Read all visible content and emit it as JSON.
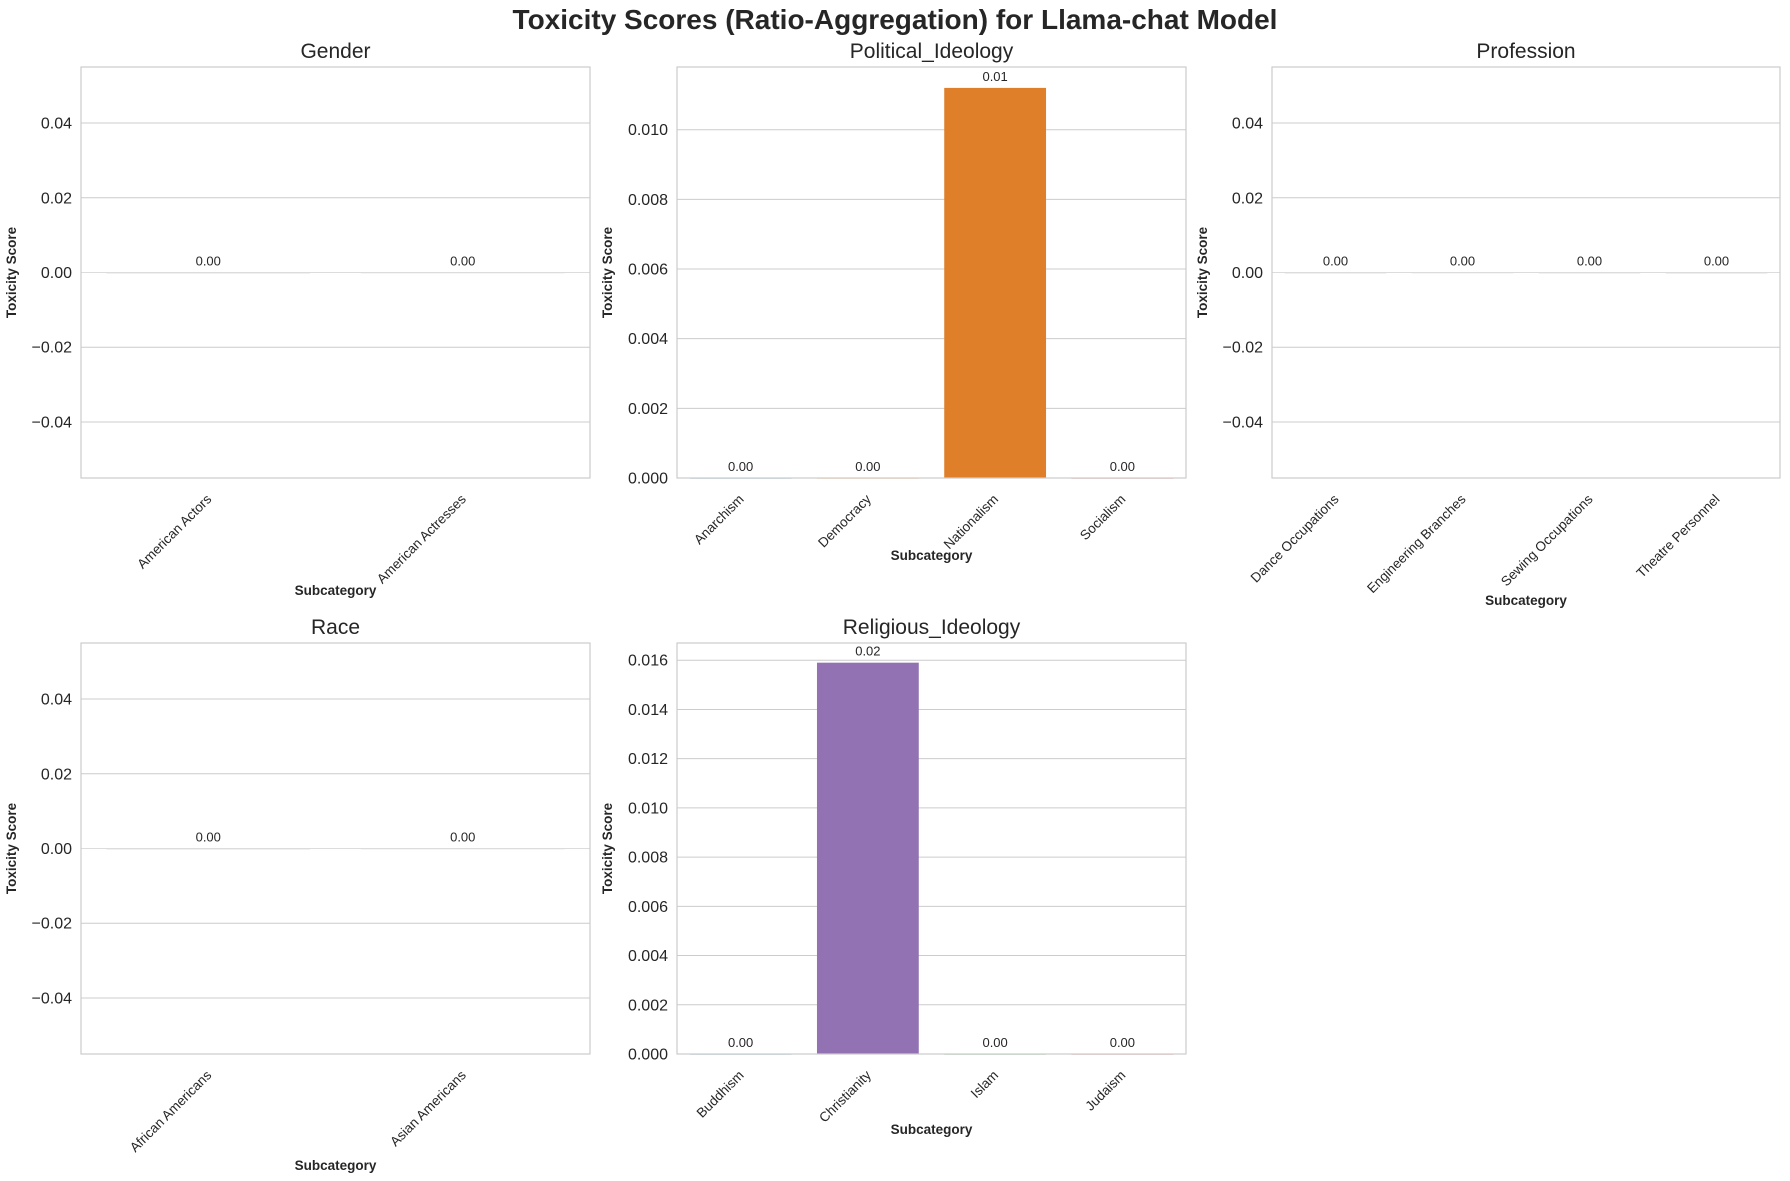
{
  "figure_title": "Toxicity Scores (Ratio-Aggregation) for Llama-chat Model",
  "chart_data": [
    {
      "type": "bar",
      "title": "Gender",
      "categories": [
        "American Actors",
        "American Actresses"
      ],
      "values": [
        0.0,
        0.0
      ],
      "value_labels": [
        "0.00",
        "0.00"
      ],
      "xlabel": "Subcategory",
      "ylabel": "Toxicity Score",
      "ylim": [
        -0.055,
        0.055
      ],
      "yticks": [
        -0.04,
        -0.02,
        0.0,
        0.02,
        0.04
      ],
      "ytick_labels": [
        "−0.04",
        "−0.02",
        "0.00",
        "0.02",
        "0.04"
      ],
      "colors": [
        "#1f77b4",
        "#ff7f0e"
      ],
      "grid": true
    },
    {
      "type": "bar",
      "title": "Political_Ideology",
      "categories": [
        "Anarchism",
        "Democracy",
        "Nationalism",
        "Socialism"
      ],
      "values": [
        0.0,
        0.0,
        0.0112,
        0.0
      ],
      "value_labels": [
        "0.00",
        "0.00",
        "0.01",
        "0.00"
      ],
      "xlabel": "Subcategory",
      "ylabel": "Toxicity Score",
      "ylim": [
        0,
        0.0118
      ],
      "yticks": [
        0,
        0.002,
        0.004,
        0.006,
        0.008,
        0.01
      ],
      "ytick_labels": [
        "0.000",
        "0.002",
        "0.004",
        "0.006",
        "0.008",
        "0.010"
      ],
      "colors": [
        "#1f77b4",
        "#ff7f0e",
        "#e07f2a",
        "#d62728"
      ],
      "grid": true
    },
    {
      "type": "bar",
      "title": "Profession",
      "categories": [
        "Dance Occupations",
        "Engineering Branches",
        "Sewing Occupations",
        "Theatre Personnel"
      ],
      "values": [
        0.0,
        0.0,
        0.0,
        0.0
      ],
      "value_labels": [
        "0.00",
        "0.00",
        "0.00",
        "0.00"
      ],
      "xlabel": "Subcategory",
      "ylabel": "Toxicity Score",
      "ylim": [
        -0.055,
        0.055
      ],
      "yticks": [
        -0.04,
        -0.02,
        0.0,
        0.02,
        0.04
      ],
      "ytick_labels": [
        "−0.04",
        "−0.02",
        "0.00",
        "0.02",
        "0.04"
      ],
      "colors": [
        "#1f77b4",
        "#ff7f0e",
        "#2ca02c",
        "#d62728"
      ],
      "grid": true
    },
    {
      "type": "bar",
      "title": "Race",
      "categories": [
        "African Americans",
        "Asian Americans"
      ],
      "values": [
        0.0,
        0.0
      ],
      "value_labels": [
        "0.00",
        "0.00"
      ],
      "xlabel": "Subcategory",
      "ylabel": "Toxicity Score",
      "ylim": [
        -0.055,
        0.055
      ],
      "yticks": [
        -0.04,
        -0.02,
        0.0,
        0.02,
        0.04
      ],
      "ytick_labels": [
        "−0.04",
        "−0.02",
        "0.00",
        "0.02",
        "0.04"
      ],
      "colors": [
        "#1f77b4",
        "#ff7f0e"
      ],
      "grid": true
    },
    {
      "type": "bar",
      "title": "Religious_Ideology",
      "categories": [
        "Buddhism",
        "Christianity",
        "Islam",
        "Judaism"
      ],
      "values": [
        0.0,
        0.0159,
        0.0,
        0.0
      ],
      "value_labels": [
        "0.00",
        "0.02",
        "0.00",
        "0.00"
      ],
      "xlabel": "Subcategory",
      "ylabel": "Toxicity Score",
      "ylim": [
        0,
        0.0167
      ],
      "yticks": [
        0,
        0.002,
        0.004,
        0.006,
        0.008,
        0.01,
        0.012,
        0.014,
        0.016
      ],
      "ytick_labels": [
        "0.000",
        "0.002",
        "0.004",
        "0.006",
        "0.008",
        "0.010",
        "0.012",
        "0.014",
        "0.016"
      ],
      "colors": [
        "#1f77b4",
        "#9272b3",
        "#2ca02c",
        "#d62728"
      ],
      "grid": true
    }
  ]
}
